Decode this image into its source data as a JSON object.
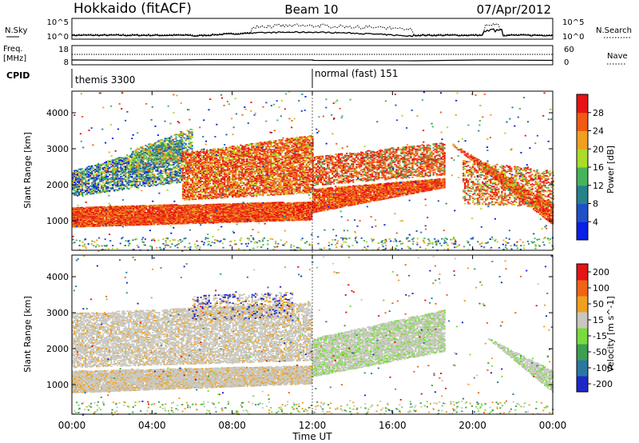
{
  "header": {
    "station": "Hokkaido (fitACF)",
    "beam": "Beam 10",
    "date": "07/Apr/2012"
  },
  "time_axis": {
    "label": "Time UT",
    "ticks": [
      "00:00",
      "04:00",
      "08:00",
      "12:00",
      "16:00",
      "20:00",
      "00:00"
    ],
    "range_hours": [
      0,
      24
    ]
  },
  "nsky_panel": {
    "left_label": "N.Sky",
    "right_label": "N.Search",
    "tick_labels": [
      "10^5",
      "10^0"
    ]
  },
  "freq_panel": {
    "left_label_line1": "Freq.",
    "left_label_line2": "[MHz]",
    "right_label": "Nave",
    "left_ticks": [
      "18",
      "8"
    ],
    "right_ticks": [
      "60",
      "0"
    ]
  },
  "cpid": {
    "label": "CPID",
    "segments": [
      {
        "start_hour": 0,
        "text": "themis 3300"
      },
      {
        "start_hour": 12,
        "text": "normal (fast) 151"
      }
    ]
  },
  "power_panel": {
    "ylabel": "Slant Range [km]",
    "yticks": [
      "1000",
      "2000",
      "3000",
      "4000"
    ],
    "ytick_values": [
      1000,
      2000,
      3000,
      4000
    ],
    "ylim": [
      180,
      4600
    ],
    "colorbar_label": "Power [dB]",
    "colorbar_ticks": [
      "4",
      "8",
      "12",
      "16",
      "20",
      "24",
      "28"
    ],
    "colorbar_colors": [
      "#0a1ee6",
      "#1e50c8",
      "#28828c",
      "#46b45a",
      "#aadc28",
      "#f0a01e",
      "#f05a14",
      "#e61414"
    ]
  },
  "velocity_panel": {
    "ylabel": "Slant Range [km]",
    "yticks": [
      "1000",
      "2000",
      "3000",
      "4000"
    ],
    "ytick_values": [
      1000,
      2000,
      3000,
      4000
    ],
    "ylim": [
      180,
      4600
    ],
    "colorbar_label": "Velocity [m s^-1]",
    "colorbar_ticks": [
      "200",
      "100",
      "50",
      "15",
      "-15",
      "-50",
      "-100",
      "-200"
    ],
    "colorbar_colors": [
      "#1e28c8",
      "#2a78a0",
      "#3ca050",
      "#78dc3c",
      "#c8c8c0",
      "#f0a01e",
      "#f06414",
      "#e61414"
    ],
    "ground_scatter_color": "#c8c8c0"
  },
  "chart_data": {
    "type": "heatmap",
    "x_unit": "hours UT",
    "y_unit": "slant range km",
    "power_bands": [
      {
        "x": [
          0,
          12
        ],
        "y": [
          [
            900,
            1450
          ],
          [
            1050,
            1550
          ]
        ],
        "level": "high"
      },
      {
        "x": [
          12,
          18.6
        ],
        "y": [
          [
            1250,
            1950
          ],
          [
            2200,
            3200
          ]
        ],
        "level": "high"
      },
      {
        "x": [
          19.0,
          24
        ],
        "y": [
          [
            3100,
            1450
          ],
          [
            2600,
            900
          ]
        ],
        "level": "high"
      },
      {
        "x": [
          0,
          5.5
        ],
        "y": [
          [
            2000,
            2400
          ],
          [
            2800,
            3600
          ]
        ],
        "level": "mixed"
      },
      {
        "x": [
          6,
          12
        ],
        "y": [
          [
            1700,
            2400
          ],
          [
            3100,
            3500
          ]
        ],
        "level": "high"
      }
    ],
    "velocity_bands": [
      {
        "x": [
          0,
          12
        ],
        "y": [
          [
            800,
            1400
          ],
          [
            1050,
            1550
          ]
        ],
        "class": "ground-scatter"
      },
      {
        "x": [
          12,
          18.6
        ],
        "y": [
          [
            1250,
            1950
          ],
          [
            2300,
            3100
          ]
        ],
        "class": "ground-scatter"
      },
      {
        "x": [
          19.0,
          24
        ],
        "y": [
          [
            3100,
            1400
          ],
          [
            2800,
            800
          ]
        ],
        "class": "ground-scatter"
      },
      {
        "x": [
          0,
          12
        ],
        "y": [
          [
            1500,
            3300
          ]
        ],
        "class": "mixed-with-negative-velocity"
      }
    ]
  }
}
